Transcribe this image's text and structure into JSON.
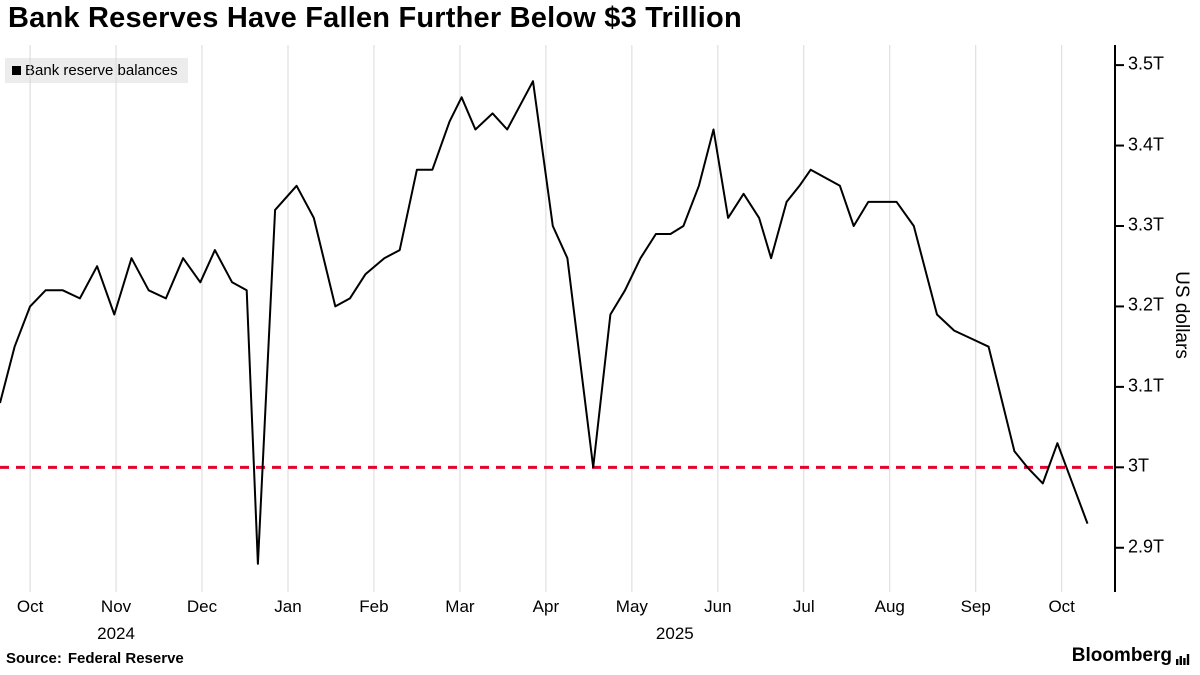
{
  "title": "Bank Reserves Have Fallen Further Below $3 Trillion",
  "legend": {
    "label": "Bank reserve balances",
    "swatch_color": "#000000"
  },
  "axis": {
    "y_label": "US dollars"
  },
  "source": {
    "prefix": "Source:",
    "text": "Federal Reserve"
  },
  "branding": "Bloomberg",
  "colors": {
    "line": "#000000",
    "threshold": "#e4032e",
    "grid": "#d9d9d9",
    "axis": "#000000",
    "legend_bg": "#ececec"
  },
  "chart_data": {
    "type": "line",
    "title": "Bank Reserves Have Fallen Further Below $3 Trillion",
    "ylabel": "US dollars",
    "units": "trillions of US dollars",
    "grid": "vertical-only",
    "legend_position": "top-left",
    "xlim": [
      -0.35,
      12.62
    ],
    "ylim": [
      2.845,
      3.525
    ],
    "x_ticks": [
      {
        "pos": 0,
        "label": "Oct"
      },
      {
        "pos": 1,
        "label": "Nov"
      },
      {
        "pos": 2,
        "label": "Dec"
      },
      {
        "pos": 3,
        "label": "Jan"
      },
      {
        "pos": 4,
        "label": "Feb"
      },
      {
        "pos": 5,
        "label": "Mar"
      },
      {
        "pos": 6,
        "label": "Apr"
      },
      {
        "pos": 7,
        "label": "May"
      },
      {
        "pos": 8,
        "label": "Jun"
      },
      {
        "pos": 9,
        "label": "Jul"
      },
      {
        "pos": 10,
        "label": "Aug"
      },
      {
        "pos": 11,
        "label": "Sep"
      },
      {
        "pos": 12,
        "label": "Oct"
      }
    ],
    "year_labels": [
      {
        "pos": 1,
        "label": "2024"
      },
      {
        "pos": 7.5,
        "label": "2025"
      }
    ],
    "y_ticks": [
      {
        "value": 3.5,
        "label": "3.5T"
      },
      {
        "value": 3.4,
        "label": "3.4T"
      },
      {
        "value": 3.3,
        "label": "3.3T"
      },
      {
        "value": 3.2,
        "label": "3.2T"
      },
      {
        "value": 3.1,
        "label": "3.1T"
      },
      {
        "value": 3.0,
        "label": "3T"
      },
      {
        "value": 2.9,
        "label": "2.9T"
      }
    ],
    "threshold": {
      "value": 3.0,
      "style": "dashed",
      "color": "#e4032e"
    },
    "series": [
      {
        "name": "Bank reserve balances",
        "x_months_from_oct_2024": [
          -0.35,
          -0.18,
          0.0,
          0.18,
          0.38,
          0.58,
          0.78,
          0.98,
          1.18,
          1.38,
          1.58,
          1.78,
          1.98,
          2.15,
          2.35,
          2.52,
          2.65,
          2.85,
          3.1,
          3.3,
          3.55,
          3.72,
          3.9,
          4.12,
          4.3,
          4.5,
          4.68,
          4.88,
          5.02,
          5.18,
          5.38,
          5.55,
          5.85,
          6.08,
          6.25,
          6.55,
          6.75,
          6.92,
          7.1,
          7.28,
          7.45,
          7.6,
          7.78,
          7.95,
          8.12,
          8.3,
          8.48,
          8.62,
          8.8,
          8.95,
          9.08,
          9.25,
          9.42,
          9.58,
          9.75,
          9.92,
          10.08,
          10.28,
          10.55,
          10.75,
          10.95,
          11.15,
          11.45,
          11.6,
          11.78,
          11.95,
          12.3
        ],
        "values_trillions": [
          3.08,
          3.15,
          3.2,
          3.22,
          3.22,
          3.21,
          3.25,
          3.19,
          3.26,
          3.22,
          3.21,
          3.26,
          3.23,
          3.27,
          3.23,
          3.22,
          2.88,
          3.32,
          3.35,
          3.31,
          3.2,
          3.21,
          3.24,
          3.26,
          3.27,
          3.37,
          3.37,
          3.43,
          3.46,
          3.42,
          3.44,
          3.42,
          3.48,
          3.3,
          3.26,
          3.0,
          3.19,
          3.22,
          3.26,
          3.29,
          3.29,
          3.3,
          3.35,
          3.42,
          3.31,
          3.34,
          3.31,
          3.26,
          3.33,
          3.35,
          3.37,
          3.36,
          3.35,
          3.3,
          3.33,
          3.33,
          3.33,
          3.3,
          3.19,
          3.17,
          3.16,
          3.15,
          3.02,
          3.0,
          2.98,
          3.03,
          2.93
        ]
      }
    ]
  }
}
